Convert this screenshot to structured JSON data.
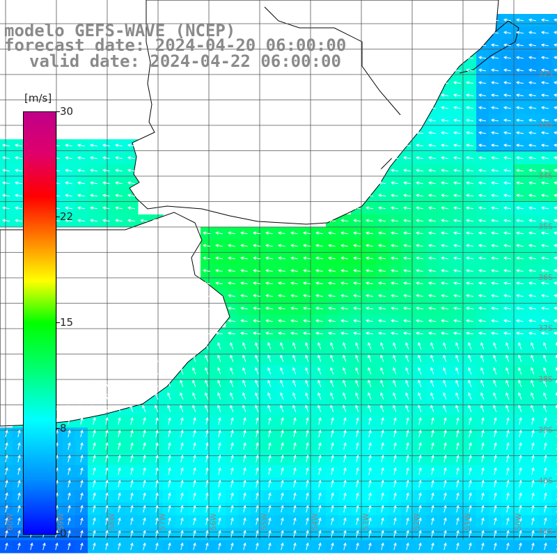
{
  "title": {
    "line1": "modelo GEFS-WAVE (NCEP)",
    "line2": "forecast date: 2024-04-20 06:00:00",
    "line3": "valid date: 2024-04-22 06:00:00"
  },
  "colorbar": {
    "unit": "[m/s]",
    "ticks": [
      "30",
      "22",
      "15",
      "8",
      "0"
    ],
    "tick_values": [
      30,
      22,
      15,
      8,
      0
    ]
  },
  "map": {
    "lat_labels": [
      "32S",
      "33S",
      "34S",
      "35S",
      "36S",
      "37S",
      "38S",
      "39S",
      "40S",
      "41S"
    ],
    "lon_labels": [
      "60W",
      "59W",
      "58W",
      "57W",
      "56W",
      "55W",
      "54W",
      "53W",
      "52W",
      "51W",
      "50W"
    ],
    "colors": {
      "land": "#ffffff",
      "coast": "#000000",
      "grid": "#555555",
      "arrow": "#ffffff"
    }
  }
}
